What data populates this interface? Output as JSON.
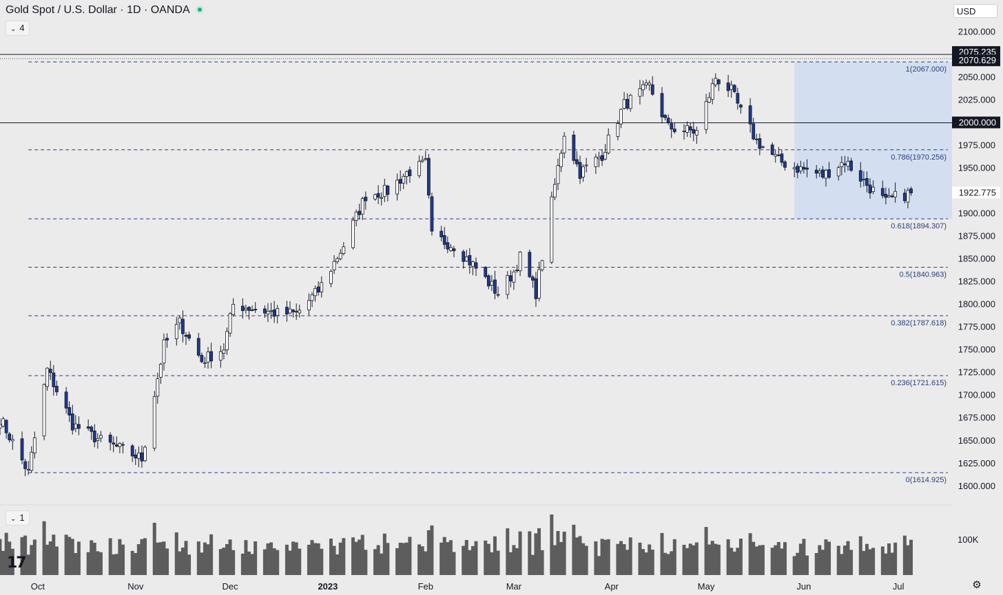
{
  "header": {
    "title": "Gold Spot / U.S. Dollar · 1D · OANDA",
    "indicator_count": "4",
    "currency": "USD",
    "status_color": "#26a69a"
  },
  "volume_pane": {
    "indicator_count": "1",
    "axis_label": "100K"
  },
  "icons": {
    "collapse": "chevron-down-icon",
    "live": "live-status-dot-icon",
    "logo": "tradingview-logo",
    "settings": "gear-icon"
  },
  "colors": {
    "bull_fill": "#ffffff",
    "bear_fill": "#1f3a93",
    "fib_line": "#1e3a8a",
    "fib_zone": "#d3dff0",
    "volume_bar": "#5d5d5d",
    "price_line": "#131722"
  },
  "chart_data": {
    "type": "candlestick",
    "title": "Gold Spot / U.S. Dollar · 1D · OANDA",
    "x_range": [
      "2022-09-19",
      "2023-07-18"
    ],
    "ylim": [
      1590,
      2120
    ],
    "y_ticks": [
      "1600.000",
      "1625.000",
      "1650.000",
      "1675.000",
      "1700.000",
      "1725.000",
      "1750.000",
      "1775.000",
      "1800.000",
      "1825.000",
      "1850.000",
      "1875.000",
      "1900.000",
      "1925.000",
      "1950.000",
      "1975.000",
      "2000.000",
      "2025.000",
      "2050.000",
      "2075.000",
      "2100.000"
    ],
    "x_ticks": [
      {
        "date": "2022-10-01",
        "label": "Oct",
        "bold": false
      },
      {
        "date": "2022-11-01",
        "label": "Nov",
        "bold": false
      },
      {
        "date": "2022-12-01",
        "label": "Dec",
        "bold": false
      },
      {
        "date": "2023-01-01",
        "label": "2023",
        "bold": true
      },
      {
        "date": "2023-02-01",
        "label": "Feb",
        "bold": false
      },
      {
        "date": "2023-03-01",
        "label": "Mar",
        "bold": false
      },
      {
        "date": "2023-04-01",
        "label": "Apr",
        "bold": false
      },
      {
        "date": "2023-05-01",
        "label": "May",
        "bold": false
      },
      {
        "date": "2023-06-01",
        "label": "Jun",
        "bold": false
      },
      {
        "date": "2023-07-01",
        "label": "Jul",
        "bold": false
      }
    ],
    "price_labels": [
      {
        "value": 2075.235,
        "label": "2075.235"
      },
      {
        "value": 2070.629,
        "label": "2070.629"
      },
      {
        "value": 2000.0,
        "label": "2000.000"
      },
      {
        "value": 1922.775,
        "label": "1922.775"
      }
    ],
    "horizontal_lines": [
      2075.235,
      2000.0
    ],
    "fib_levels": [
      {
        "value": 2067.0,
        "label": "1(2067.000)"
      },
      {
        "value": 1970.256,
        "label": "0.786(1970.256)"
      },
      {
        "value": 1894.307,
        "label": "0.618(1894.307)"
      },
      {
        "value": 1840.963,
        "label": "0.5(1840.963)"
      },
      {
        "value": 1787.618,
        "label": "0.382(1787.618)"
      },
      {
        "value": 1721.615,
        "label": "0.236(1721.615)"
      },
      {
        "value": 1614.925,
        "label": "0(1614.925)"
      }
    ],
    "fib_zone": {
      "start": "2023-05-29",
      "end": "2023-07-18",
      "top": 2067.0,
      "bottom": 1894.307
    },
    "anchor_points": [
      {
        "date": "2022-09-19",
        "close": 1675
      },
      {
        "date": "2022-09-28",
        "close": 1615
      },
      {
        "date": "2022-10-04",
        "close": 1728
      },
      {
        "date": "2022-10-12",
        "close": 1668
      },
      {
        "date": "2022-10-21",
        "close": 1650
      },
      {
        "date": "2022-10-28",
        "close": 1640
      },
      {
        "date": "2022-11-03",
        "close": 1630
      },
      {
        "date": "2022-11-10",
        "close": 1755
      },
      {
        "date": "2022-11-15",
        "close": 1780
      },
      {
        "date": "2022-11-22",
        "close": 1738
      },
      {
        "date": "2022-11-29",
        "close": 1752
      },
      {
        "date": "2022-12-02",
        "close": 1800
      },
      {
        "date": "2022-12-09",
        "close": 1795
      },
      {
        "date": "2022-12-16",
        "close": 1790
      },
      {
        "date": "2022-12-22",
        "close": 1790
      },
      {
        "date": "2022-12-29",
        "close": 1815
      },
      {
        "date": "2023-01-06",
        "close": 1865
      },
      {
        "date": "2023-01-13",
        "close": 1920
      },
      {
        "date": "2023-01-20",
        "close": 1925
      },
      {
        "date": "2023-01-26",
        "close": 1945
      },
      {
        "date": "2023-02-01",
        "close": 1955
      },
      {
        "date": "2023-02-03",
        "close": 1875
      },
      {
        "date": "2023-02-10",
        "close": 1865
      },
      {
        "date": "2023-02-17",
        "close": 1840
      },
      {
        "date": "2023-02-24",
        "close": 1812
      },
      {
        "date": "2023-03-01",
        "close": 1836
      },
      {
        "date": "2023-03-03",
        "close": 1852
      },
      {
        "date": "2023-03-08",
        "close": 1813
      },
      {
        "date": "2023-03-13",
        "close": 1912
      },
      {
        "date": "2023-03-17",
        "close": 1989
      },
      {
        "date": "2023-03-22",
        "close": 1945
      },
      {
        "date": "2023-03-29",
        "close": 1965
      },
      {
        "date": "2023-04-05",
        "close": 2020
      },
      {
        "date": "2023-04-13",
        "close": 2040
      },
      {
        "date": "2023-04-19",
        "close": 1995
      },
      {
        "date": "2023-04-28",
        "close": 1990
      },
      {
        "date": "2023-05-04",
        "close": 2050
      },
      {
        "date": "2023-05-09",
        "close": 2035
      },
      {
        "date": "2023-05-12",
        "close": 2012
      },
      {
        "date": "2023-05-17",
        "close": 1980
      },
      {
        "date": "2023-05-24",
        "close": 1958
      },
      {
        "date": "2023-05-30",
        "close": 1950
      },
      {
        "date": "2023-06-02",
        "close": 1948
      },
      {
        "date": "2023-06-07",
        "close": 1942
      },
      {
        "date": "2023-06-14",
        "close": 1958
      },
      {
        "date": "2023-06-21",
        "close": 1932
      },
      {
        "date": "2023-06-27",
        "close": 1912
      },
      {
        "date": "2023-06-30",
        "close": 1918
      },
      {
        "date": "2023-07-05",
        "close": 1922.775
      }
    ]
  }
}
